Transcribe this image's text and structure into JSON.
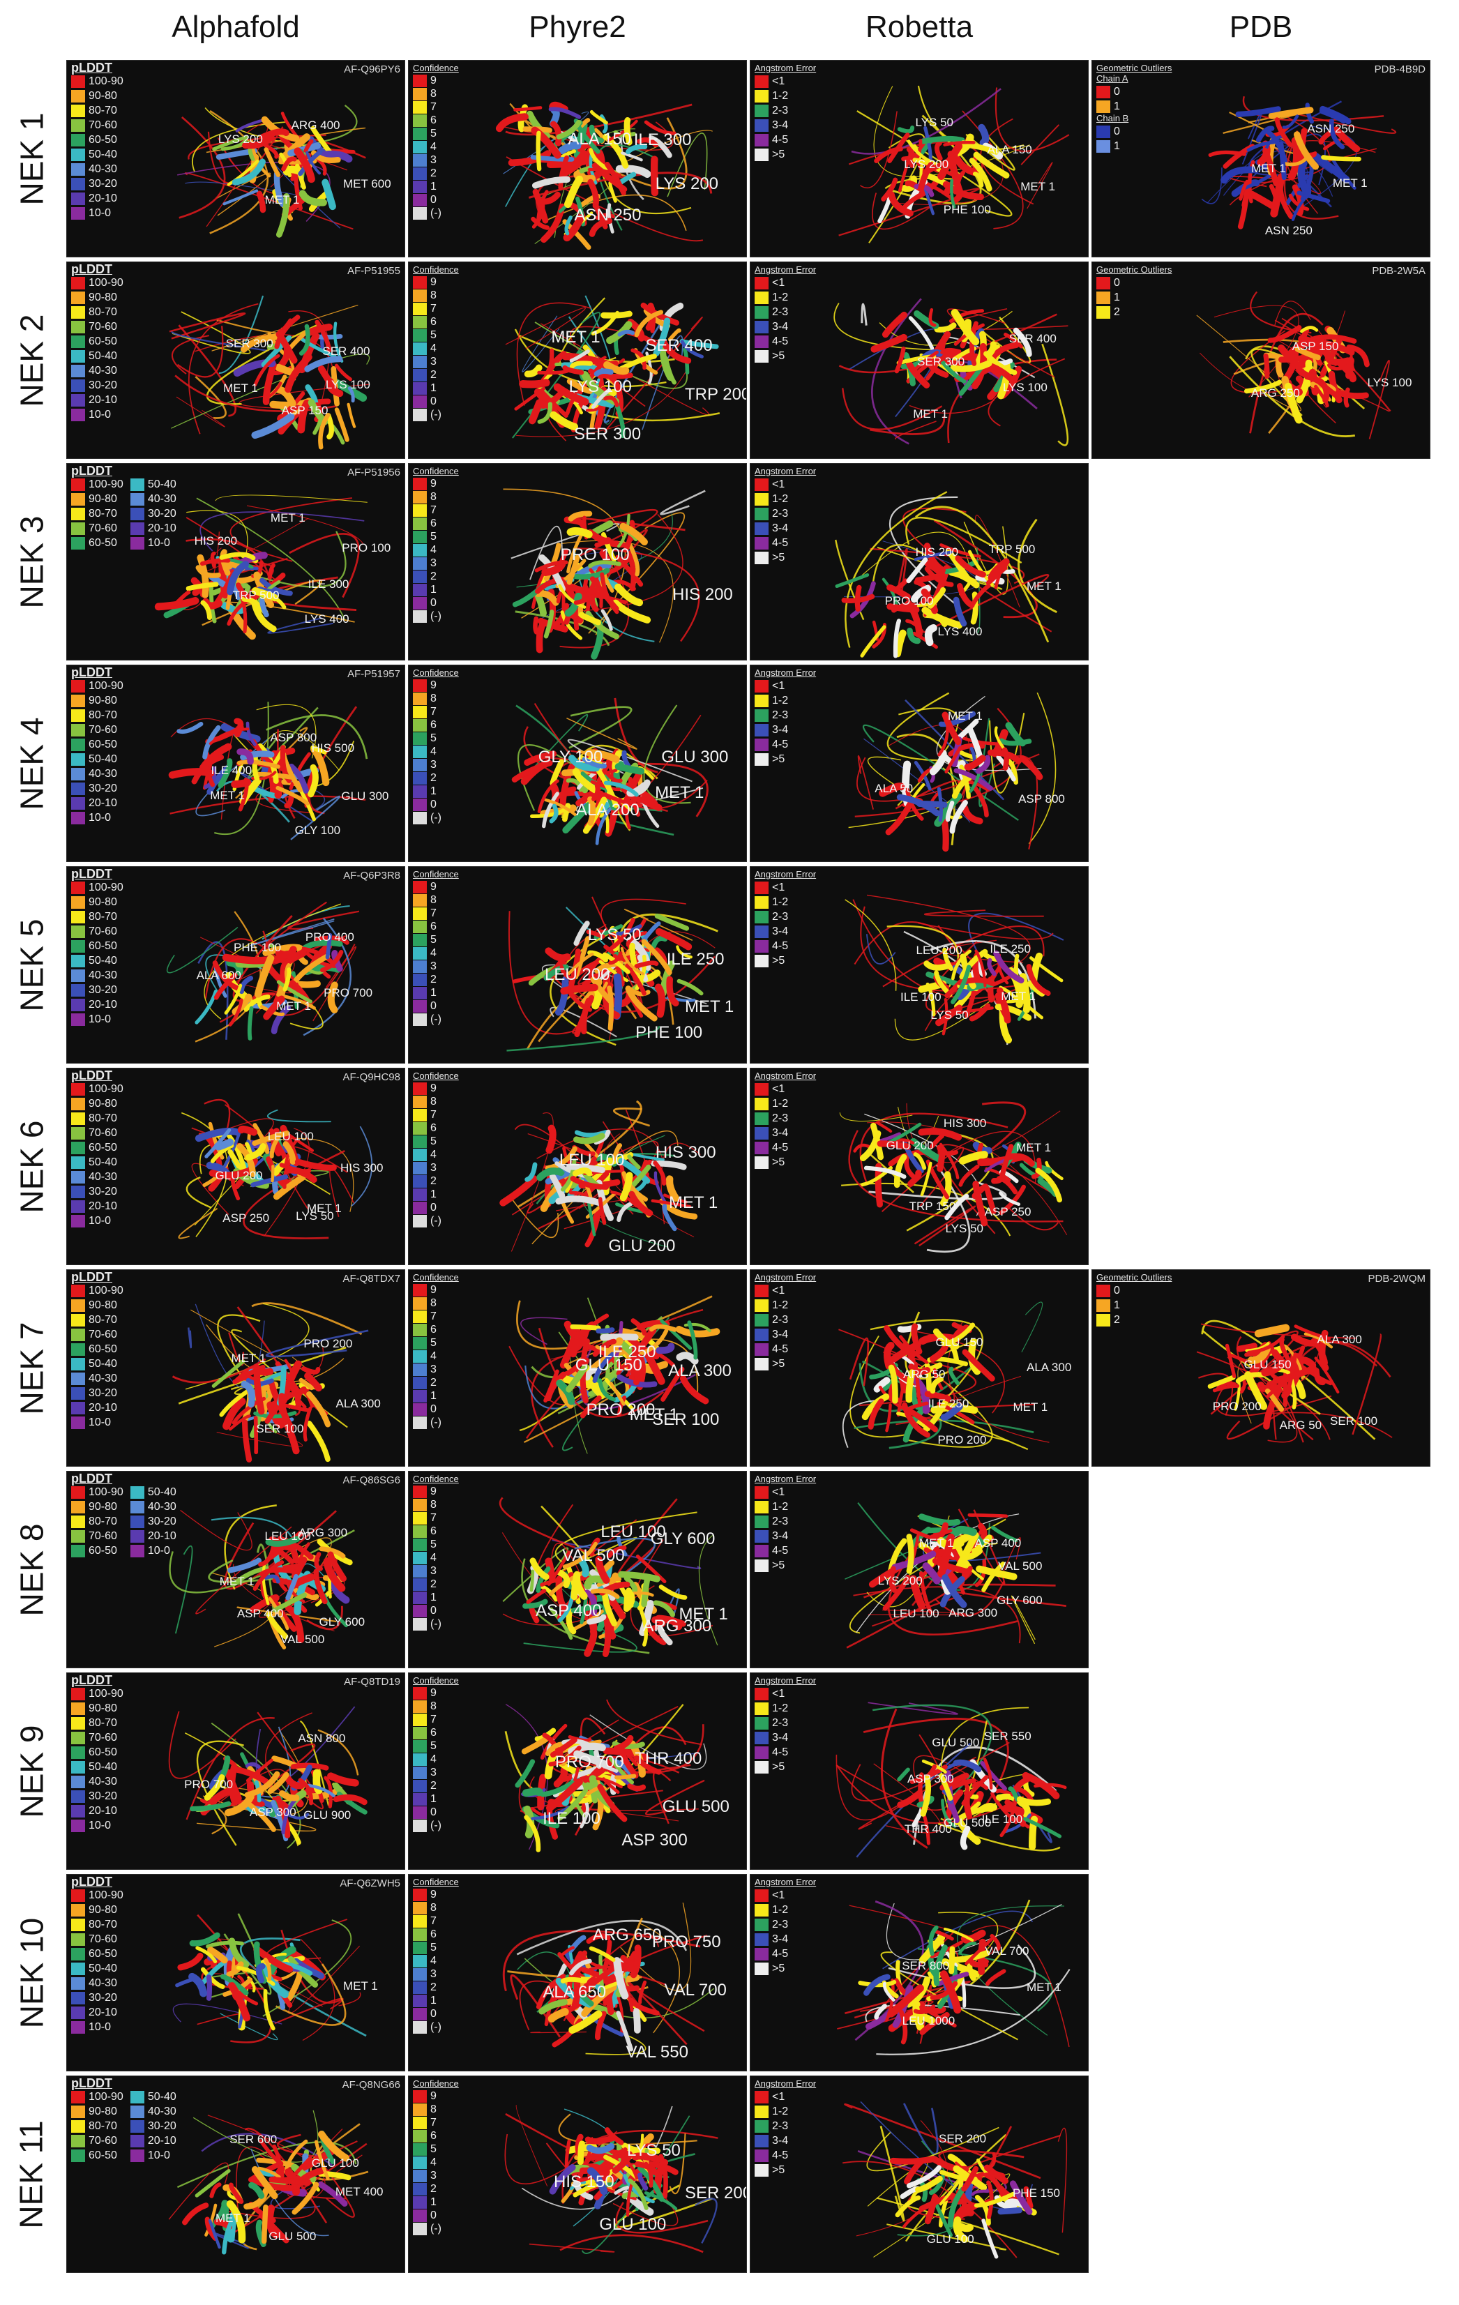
{
  "columns": [
    "Alphafold",
    "Phyre2",
    "Robetta",
    "PDB"
  ],
  "colors": {
    "plddt": [
      "#e3191c",
      "#f6a623",
      "#f7e81a",
      "#88c340",
      "#2ca25f",
      "#3bb9c4",
      "#5b8bd6",
      "#3b50b8",
      "#5a3bb0",
      "#8a2b9e"
    ],
    "confidence": [
      "#e3191c",
      "#f6a623",
      "#f7e81a",
      "#88c340",
      "#2ca25f",
      "#3bb9c4",
      "#4d7fd0",
      "#3b50b8",
      "#5a3bb0",
      "#8a2b9e",
      "#dddddd"
    ],
    "angstrom": [
      "#e3191c",
      "#f7e81a",
      "#2ca25f",
      "#3b50b8",
      "#8a2b9e",
      "#eeeeee"
    ],
    "outliers": [
      "#e3191c",
      "#f6a623",
      "#f7e81a"
    ]
  },
  "legends": {
    "plddt": {
      "title": "pLDDT",
      "items": [
        "100-90",
        "90-80",
        "80-70",
        "70-60",
        "60-50",
        "50-40",
        "40-30",
        "30-20",
        "20-10",
        "10-0"
      ]
    },
    "confidence": {
      "title": "Confidence",
      "items": [
        "9",
        "8",
        "7",
        "6",
        "5",
        "4",
        "3",
        "2",
        "1",
        "0",
        "(-)"
      ]
    },
    "angstrom": {
      "title": "Angstrom Error",
      "items": [
        "<1",
        "1-2",
        "2-3",
        "3-4",
        "4-5",
        ">5"
      ]
    },
    "outliers": {
      "title": "Geometric Outliers",
      "items": [
        "0",
        "1",
        "2"
      ]
    },
    "outliers_chain": {
      "title": "Geometric Outliers",
      "chain_a": "Chain A",
      "chain_b": "Chain B",
      "a_items": [
        "0",
        "1"
      ],
      "b_items": [
        "0",
        "1"
      ]
    }
  },
  "rows": [
    {
      "label": "NEK 1",
      "alphafold": {
        "acc": "AF-Q96PY6",
        "residues": [
          "MET 600",
          "MET 1",
          "LYS 200",
          "ARG 400"
        ]
      },
      "phyre2": {
        "residues": [
          "LYS 200",
          "ASN 250",
          "ALA 150",
          "ILE 300"
        ]
      },
      "robetta": {
        "residues": [
          "MET 1",
          "PHE 100",
          "LYS 200",
          "LYS 50",
          "ALA 150"
        ]
      },
      "pdb": {
        "acc": "PDB-4B9D",
        "residues": [
          "MET 1",
          "ASN 250",
          "MET 1",
          "ASN 250"
        ]
      }
    },
    {
      "label": "NEK 2",
      "alphafold": {
        "acc": "AF-P51955",
        "residues": [
          "LYS 100",
          "ASP 150",
          "MET 1",
          "SER 300",
          "SER 400"
        ]
      },
      "phyre2": {
        "residues": [
          "TRP 200",
          "SER 300",
          "LYS 100",
          "MET 1",
          "SER 400"
        ]
      },
      "robetta": {
        "residues": [
          "LYS 100",
          "MET 1",
          "SER 300",
          "SER 400"
        ]
      },
      "pdb": {
        "acc": "PDB-2W5A",
        "residues": [
          "LYS 100",
          "ARG 250",
          "ASP 150"
        ]
      }
    },
    {
      "label": "NEK 3",
      "alphafold": {
        "acc": "AF-P51956",
        "residues": [
          "ILE 300",
          "LYS 400",
          "TRP 500",
          "HIS 200",
          "MET 1",
          "PRO 100"
        ]
      },
      "phyre2": {
        "residues": [
          "HIS 200",
          "PRO 100"
        ]
      },
      "robetta": {
        "residues": [
          "MET 1",
          "LYS 400",
          "PRO 100",
          "HIS 200",
          "TRP 500"
        ]
      }
    },
    {
      "label": "NEK 4",
      "alphafold": {
        "acc": "AF-P51957",
        "residues": [
          "GLU 300",
          "GLY 100",
          "MET 1",
          "ILE 400",
          "ASP 800",
          "HIS 500"
        ]
      },
      "phyre2": {
        "residues": [
          "MET 1",
          "ALA 200",
          "GLY 100",
          "GLU 300"
        ]
      },
      "robetta": {
        "residues": [
          "ASP 800",
          "ALA 50",
          "MET 1"
        ]
      }
    },
    {
      "label": "NEK 5",
      "alphafold": {
        "acc": "AF-Q6P3R8",
        "residues": [
          "PRO 700",
          "MET 1",
          "ALA 600",
          "PHE 100",
          "PRO 400"
        ]
      },
      "phyre2": {
        "residues": [
          "MET 1",
          "PHE 100",
          "LEU 200",
          "LYS 50",
          "ILE 250"
        ]
      },
      "robetta": {
        "residues": [
          "MET 1",
          "LYS 50",
          "ILE 100",
          "LEU 200",
          "ILE 250"
        ]
      }
    },
    {
      "label": "NEK 6",
      "alphafold": {
        "acc": "AF-Q9HC98",
        "residues": [
          "MET 1",
          "LYS 50",
          "ASP 250",
          "GLU 200",
          "LEU 100",
          "HIS 300"
        ]
      },
      "phyre2": {
        "residues": [
          "MET 1",
          "GLU 200",
          "LEU 100",
          "HIS 300"
        ]
      },
      "robetta": {
        "residues": [
          "ASP 250",
          "LYS 50",
          "TRP 150",
          "GLU 200",
          "HIS 300",
          "MET 1"
        ]
      }
    },
    {
      "label": "NEK 7",
      "alphafold": {
        "acc": "AF-Q8TDX7",
        "residues": [
          "ALA 300",
          "SER 100",
          "MET 1",
          "PRO 200"
        ]
      },
      "phyre2": {
        "residues": [
          "SER 100",
          "MET 1",
          "PRO 200",
          "GLU 150",
          "ILE 250",
          "ALA 300"
        ]
      },
      "robetta": {
        "residues": [
          "MET 1",
          "PRO 200",
          "ILE 250",
          "ARG 50",
          "GLU 150",
          "ALA 300"
        ]
      },
      "pdb": {
        "acc": "PDB-2WQM",
        "residues": [
          "SER 100",
          "ARG 50",
          "PRO 200",
          "GLU 150",
          "ALA 300"
        ]
      }
    },
    {
      "label": "NEK 8",
      "alphafold": {
        "acc": "AF-Q86SG6",
        "residues": [
          "GLY 600",
          "VAL 500",
          "ASP 400",
          "MET 1",
          "LEU 100",
          "ARG 300"
        ]
      },
      "phyre2": {
        "residues": [
          "MET 1",
          "ARG 300",
          "ASP 400",
          "VAL 500",
          "LEU 100",
          "GLY 600"
        ]
      },
      "robetta": {
        "residues": [
          "GLY 600",
          "ARG 300",
          "LEU 100",
          "LYS 200",
          "MET 1",
          "ASP 400",
          "VAL 500"
        ]
      }
    },
    {
      "label": "NEK 9",
      "alphafold": {
        "acc": "AF-Q8TD19",
        "residues": [
          "GLU 900",
          "ASP 300",
          "PRO 700",
          "ASN 800"
        ]
      },
      "phyre2": {
        "residues": [
          "GLU 500",
          "ASP 300",
          "ILE 100",
          "PRO 700",
          "THR 400"
        ]
      },
      "robetta": {
        "residues": [
          "ILE 100",
          "GLU 500",
          "THR 400",
          "ASP 300",
          "GLU 500",
          "SER 550"
        ]
      }
    },
    {
      "label": "NEK 10",
      "alphafold": {
        "acc": "AF-Q6ZWH5",
        "residues": [
          "MET 1"
        ]
      },
      "phyre2": {
        "residues": [
          "VAL 700",
          "VAL 550",
          "ALA 650",
          "ARG 650",
          "PRO 750"
        ]
      },
      "robetta": {
        "residues": [
          "MET 1",
          "LEU 1000",
          "SER 800",
          "VAL 700"
        ]
      }
    },
    {
      "label": "NEK 11",
      "alphafold": {
        "acc": "AF-Q8NG66",
        "residues": [
          "MET 400",
          "GLU 500",
          "MET 1",
          "SER 600",
          "GLU 100"
        ]
      },
      "phyre2": {
        "residues": [
          "SER 200",
          "GLU 100",
          "HIS 150",
          "LYS 50"
        ]
      },
      "robetta": {
        "residues": [
          "PHE 150",
          "GLU 100",
          "SER 200"
        ]
      }
    }
  ]
}
